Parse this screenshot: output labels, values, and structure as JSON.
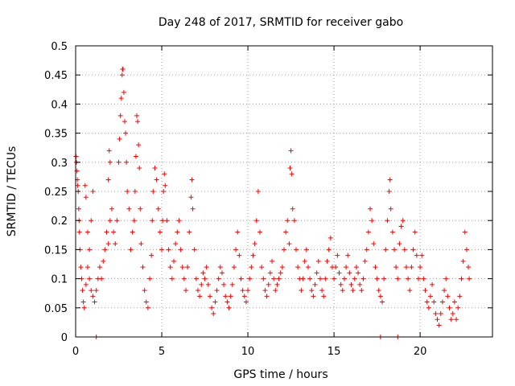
{
  "chart_data": {
    "type": "scatter",
    "title": "Day 248 of 2017, SRMTID for receiver gabo",
    "xlabel": "GPS time / hours",
    "ylabel": "SRMTID / TECUs",
    "xlim": [
      0,
      24.2
    ],
    "ylim": [
      0,
      0.5
    ],
    "xticks": [
      0,
      5,
      10,
      15,
      20
    ],
    "xtick_labels": [
      "0",
      "5",
      "10",
      "15",
      "20"
    ],
    "yticks": [
      0,
      0.05,
      0.1,
      0.15,
      0.2,
      0.25,
      0.3,
      0.35,
      0.4,
      0.45,
      0.5
    ],
    "ytick_labels": [
      "0",
      "0.05",
      "0.1",
      "0.15",
      "0.2",
      "0.25",
      "0.3",
      "0.35",
      "0.4",
      "0.45",
      "0.5"
    ],
    "grid": true,
    "marker": "+",
    "series": [
      {
        "name": "SRMTID",
        "color": "#ff0000",
        "points": [
          [
            0.02,
            0.31
          ],
          [
            0.05,
            0.3
          ],
          [
            0.08,
            0.285
          ],
          [
            0.1,
            0.27
          ],
          [
            0.12,
            0.26
          ],
          [
            0.15,
            0.25
          ],
          [
            0.18,
            0.22
          ],
          [
            0.2,
            0.2
          ],
          [
            0.22,
            0.18
          ],
          [
            0.25,
            0.15
          ],
          [
            0.3,
            0.12
          ],
          [
            0.35,
            0.1
          ],
          [
            0.4,
            0.08
          ],
          [
            0.45,
            0.06
          ],
          [
            0.5,
            0.05
          ],
          [
            0.6,
            0.09
          ],
          [
            0.7,
            0.12
          ],
          [
            0.8,
            0.15
          ],
          [
            0.9,
            0.2
          ],
          [
            1.0,
            0.25
          ],
          [
            0.55,
            0.26
          ],
          [
            0.6,
            0.24
          ],
          [
            0.7,
            0.18
          ],
          [
            0.8,
            0.1
          ],
          [
            0.9,
            0.08
          ],
          [
            1.0,
            0.07
          ],
          [
            1.1,
            0.06
          ],
          [
            1.2,
            0.08
          ],
          [
            1.3,
            0.1
          ],
          [
            1.4,
            0.12
          ],
          [
            1.5,
            0.1
          ],
          [
            1.6,
            0.13
          ],
          [
            1.7,
            0.15
          ],
          [
            1.8,
            0.18
          ],
          [
            1.9,
            0.16
          ],
          [
            2.0,
            0.2
          ],
          [
            1.9,
            0.27
          ],
          [
            1.95,
            0.32
          ],
          [
            2.0,
            0.3
          ],
          [
            2.1,
            0.22
          ],
          [
            2.2,
            0.18
          ],
          [
            2.3,
            0.16
          ],
          [
            2.4,
            0.2
          ],
          [
            2.5,
            0.3
          ],
          [
            2.55,
            0.34
          ],
          [
            2.6,
            0.38
          ],
          [
            2.65,
            0.41
          ],
          [
            2.7,
            0.45
          ],
          [
            2.72,
            0.46
          ],
          [
            2.75,
            0.46
          ],
          [
            2.8,
            0.42
          ],
          [
            2.85,
            0.37
          ],
          [
            2.9,
            0.35
          ],
          [
            2.95,
            0.3
          ],
          [
            3.0,
            0.25
          ],
          [
            3.1,
            0.22
          ],
          [
            3.2,
            0.15
          ],
          [
            3.3,
            0.18
          ],
          [
            3.4,
            0.2
          ],
          [
            3.45,
            0.25
          ],
          [
            3.5,
            0.31
          ],
          [
            3.55,
            0.38
          ],
          [
            3.6,
            0.37
          ],
          [
            3.65,
            0.33
          ],
          [
            3.7,
            0.29
          ],
          [
            3.75,
            0.22
          ],
          [
            3.8,
            0.16
          ],
          [
            3.9,
            0.12
          ],
          [
            4.0,
            0.08
          ],
          [
            4.1,
            0.06
          ],
          [
            4.2,
            0.05
          ],
          [
            4.3,
            0.1
          ],
          [
            4.4,
            0.14
          ],
          [
            4.45,
            0.2
          ],
          [
            4.5,
            0.25
          ],
          [
            4.6,
            0.29
          ],
          [
            4.7,
            0.27
          ],
          [
            4.8,
            0.22
          ],
          [
            4.9,
            0.18
          ],
          [
            5.0,
            0.15
          ],
          [
            5.05,
            0.2
          ],
          [
            5.1,
            0.25
          ],
          [
            5.15,
            0.28
          ],
          [
            5.2,
            0.26
          ],
          [
            5.3,
            0.2
          ],
          [
            5.4,
            0.15
          ],
          [
            5.5,
            0.12
          ],
          [
            5.6,
            0.1
          ],
          [
            5.7,
            0.13
          ],
          [
            5.8,
            0.16
          ],
          [
            5.9,
            0.18
          ],
          [
            6.0,
            0.2
          ],
          [
            6.1,
            0.15
          ],
          [
            6.2,
            0.12
          ],
          [
            6.3,
            0.1
          ],
          [
            6.4,
            0.08
          ],
          [
            6.5,
            0.12
          ],
          [
            6.6,
            0.18
          ],
          [
            6.7,
            0.24
          ],
          [
            6.75,
            0.27
          ],
          [
            6.8,
            0.22
          ],
          [
            6.9,
            0.15
          ],
          [
            7.0,
            0.1
          ],
          [
            7.1,
            0.08
          ],
          [
            7.2,
            0.07
          ],
          [
            7.3,
            0.09
          ],
          [
            7.4,
            0.11
          ],
          [
            7.5,
            0.1
          ],
          [
            7.6,
            0.12
          ],
          [
            7.7,
            0.09
          ],
          [
            7.8,
            0.07
          ],
          [
            7.9,
            0.05
          ],
          [
            8.0,
            0.04
          ],
          [
            8.1,
            0.06
          ],
          [
            8.2,
            0.08
          ],
          [
            8.3,
            0.1
          ],
          [
            8.4,
            0.12
          ],
          [
            8.5,
            0.11
          ],
          [
            8.6,
            0.09
          ],
          [
            8.7,
            0.07
          ],
          [
            8.8,
            0.06
          ],
          [
            8.9,
            0.05
          ],
          [
            9.0,
            0.07
          ],
          [
            9.1,
            0.09
          ],
          [
            9.2,
            0.12
          ],
          [
            9.3,
            0.15
          ],
          [
            9.4,
            0.18
          ],
          [
            9.5,
            0.14
          ],
          [
            9.6,
            0.1
          ],
          [
            9.7,
            0.08
          ],
          [
            9.8,
            0.07
          ],
          [
            9.9,
            0.06
          ],
          [
            10.0,
            0.08
          ],
          [
            10.1,
            0.1
          ],
          [
            10.2,
            0.12
          ],
          [
            10.3,
            0.14
          ],
          [
            10.4,
            0.16
          ],
          [
            10.5,
            0.2
          ],
          [
            10.6,
            0.25
          ],
          [
            10.7,
            0.18
          ],
          [
            10.8,
            0.12
          ],
          [
            10.9,
            0.1
          ],
          [
            11.0,
            0.08
          ],
          [
            11.1,
            0.07
          ],
          [
            11.2,
            0.09
          ],
          [
            11.3,
            0.11
          ],
          [
            11.4,
            0.13
          ],
          [
            11.5,
            0.1
          ],
          [
            11.6,
            0.08
          ],
          [
            11.7,
            0.09
          ],
          [
            11.8,
            0.1
          ],
          [
            11.9,
            0.11
          ],
          [
            12.0,
            0.12
          ],
          [
            12.1,
            0.15
          ],
          [
            12.2,
            0.18
          ],
          [
            12.3,
            0.2
          ],
          [
            12.4,
            0.16
          ],
          [
            12.45,
            0.29
          ],
          [
            12.5,
            0.32
          ],
          [
            12.55,
            0.28
          ],
          [
            12.6,
            0.22
          ],
          [
            12.7,
            0.2
          ],
          [
            12.8,
            0.15
          ],
          [
            12.9,
            0.12
          ],
          [
            13.0,
            0.1
          ],
          [
            13.1,
            0.08
          ],
          [
            13.2,
            0.1
          ],
          [
            13.3,
            0.13
          ],
          [
            13.4,
            0.15
          ],
          [
            13.5,
            0.12
          ],
          [
            13.6,
            0.1
          ],
          [
            13.7,
            0.08
          ],
          [
            13.8,
            0.07
          ],
          [
            13.9,
            0.09
          ],
          [
            14.0,
            0.11
          ],
          [
            14.1,
            0.13
          ],
          [
            14.2,
            0.1
          ],
          [
            14.3,
            0.08
          ],
          [
            14.4,
            0.07
          ],
          [
            14.5,
            0.1
          ],
          [
            14.6,
            0.13
          ],
          [
            14.7,
            0.15
          ],
          [
            14.8,
            0.17
          ],
          [
            14.9,
            0.12
          ],
          [
            15.0,
            0.1
          ],
          [
            15.1,
            0.12
          ],
          [
            15.2,
            0.14
          ],
          [
            15.3,
            0.11
          ],
          [
            15.4,
            0.09
          ],
          [
            15.5,
            0.08
          ],
          [
            15.6,
            0.1
          ],
          [
            15.7,
            0.12
          ],
          [
            15.8,
            0.14
          ],
          [
            15.9,
            0.11
          ],
          [
            16.0,
            0.09
          ],
          [
            16.1,
            0.08
          ],
          [
            16.2,
            0.1
          ],
          [
            16.3,
            0.12
          ],
          [
            16.4,
            0.11
          ],
          [
            16.5,
            0.09
          ],
          [
            16.6,
            0.08
          ],
          [
            16.7,
            0.1
          ],
          [
            16.8,
            0.13
          ],
          [
            16.9,
            0.15
          ],
          [
            17.0,
            0.18
          ],
          [
            17.1,
            0.22
          ],
          [
            17.2,
            0.2
          ],
          [
            17.3,
            0.16
          ],
          [
            17.4,
            0.12
          ],
          [
            17.5,
            0.1
          ],
          [
            17.6,
            0.08
          ],
          [
            17.7,
            0.07
          ],
          [
            17.8,
            0.06
          ],
          [
            17.9,
            0.1
          ],
          [
            18.0,
            0.15
          ],
          [
            18.1,
            0.2
          ],
          [
            18.2,
            0.25
          ],
          [
            18.25,
            0.27
          ],
          [
            18.3,
            0.22
          ],
          [
            18.4,
            0.18
          ],
          [
            18.5,
            0.15
          ],
          [
            18.6,
            0.12
          ],
          [
            18.7,
            0.1
          ],
          [
            18.8,
            0.16
          ],
          [
            18.9,
            0.19
          ],
          [
            19.0,
            0.2
          ],
          [
            19.1,
            0.15
          ],
          [
            19.2,
            0.12
          ],
          [
            19.3,
            0.1
          ],
          [
            19.4,
            0.08
          ],
          [
            19.5,
            0.12
          ],
          [
            19.6,
            0.15
          ],
          [
            19.7,
            0.18
          ],
          [
            19.8,
            0.14
          ],
          [
            19.9,
            0.1
          ],
          [
            20.0,
            0.12
          ],
          [
            20.1,
            0.14
          ],
          [
            20.2,
            0.1
          ],
          [
            20.3,
            0.08
          ],
          [
            20.4,
            0.06
          ],
          [
            20.5,
            0.05
          ],
          [
            20.6,
            0.07
          ],
          [
            20.7,
            0.09
          ],
          [
            20.8,
            0.06
          ],
          [
            20.9,
            0.04
          ],
          [
            21.0,
            0.03
          ],
          [
            21.1,
            0.02
          ],
          [
            21.2,
            0.04
          ],
          [
            21.3,
            0.06
          ],
          [
            21.4,
            0.08
          ],
          [
            21.5,
            0.1
          ],
          [
            21.6,
            0.07
          ],
          [
            21.7,
            0.05
          ],
          [
            21.8,
            0.03
          ],
          [
            21.9,
            0.04
          ],
          [
            22.0,
            0.06
          ],
          [
            22.1,
            0.03
          ],
          [
            22.2,
            0.05
          ],
          [
            22.3,
            0.07
          ],
          [
            22.4,
            0.1
          ],
          [
            22.5,
            0.13
          ],
          [
            22.6,
            0.18
          ],
          [
            22.7,
            0.15
          ],
          [
            22.8,
            0.12
          ],
          [
            22.85,
            0.1
          ],
          [
            1.2,
            0.0
          ],
          [
            17.7,
            0.0
          ],
          [
            18.7,
            0.0
          ]
        ]
      }
    ]
  }
}
